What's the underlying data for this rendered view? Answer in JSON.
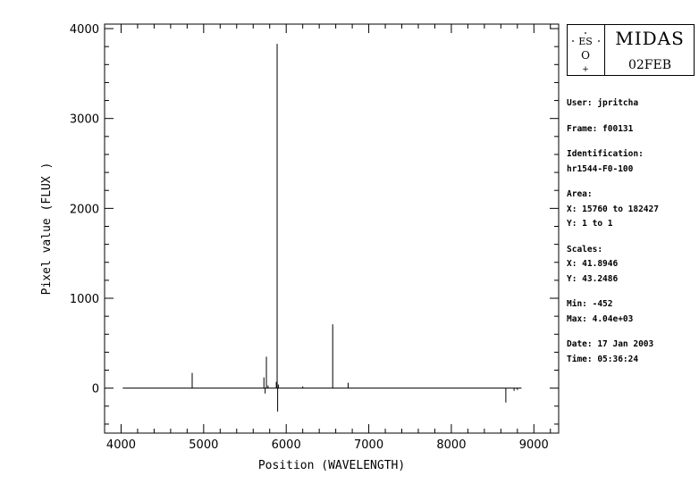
{
  "chart_data": {
    "type": "line",
    "xlabel": "Position (WAVELENGTH)",
    "ylabel": "Pixel value (FLUX )",
    "xlim": [
      3800,
      9300
    ],
    "ylim": [
      -500,
      4050
    ],
    "xticks": [
      4000,
      5000,
      6000,
      7000,
      8000,
      9000
    ],
    "yticks": [
      0,
      1000,
      2000,
      3000,
      4000
    ],
    "grid": false,
    "x_range": [
      4020,
      8850
    ],
    "baseline": 0,
    "spikes": [
      {
        "x": 4861,
        "y": 170
      },
      {
        "x": 5730,
        "y": 120
      },
      {
        "x": 5745,
        "y": -60
      },
      {
        "x": 5760,
        "y": 350
      },
      {
        "x": 5780,
        "y": 30
      },
      {
        "x": 5880,
        "y": 70
      },
      {
        "x": 5890,
        "y": 3830
      },
      {
        "x": 5896,
        "y": -260
      },
      {
        "x": 5905,
        "y": 40
      },
      {
        "x": 6200,
        "y": 20
      },
      {
        "x": 6563,
        "y": 710
      },
      {
        "x": 6750,
        "y": 60
      },
      {
        "x": 8660,
        "y": -160
      },
      {
        "x": 8760,
        "y": -30
      },
      {
        "x": 8800,
        "y": -20
      }
    ]
  },
  "logo": {
    "title": "MIDAS",
    "version": "02FEB",
    "eso_text": "ES",
    "eso_o": "O"
  },
  "info": {
    "user": "User: jpritcha",
    "frame": "Frame: f00131",
    "identification_label": "Identification:",
    "identification_value": "hr1544-F0-100",
    "area_label": "Area:",
    "area_x": "X: 15760 to 182427",
    "area_y": "Y: 1 to 1",
    "scales_label": "Scales:",
    "scales_x": "X: 41.8946",
    "scales_y": "Y: 43.2486",
    "min": "Min: -452",
    "max": "Max: 4.04e+03",
    "date": "Date: 17 Jan 2003",
    "time": "Time: 05:36:24"
  }
}
